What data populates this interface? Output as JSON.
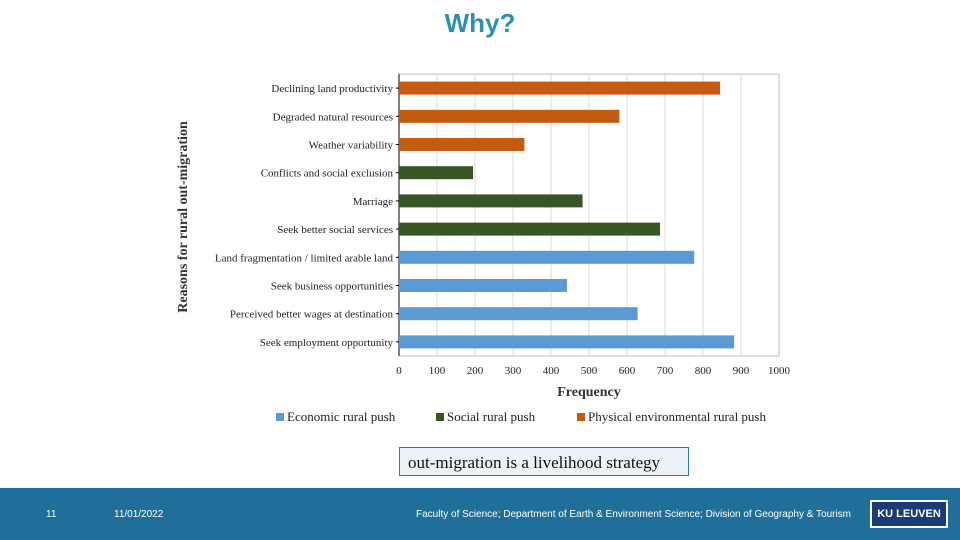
{
  "title": "Why?",
  "chart_data": {
    "type": "bar",
    "orientation": "horizontal",
    "xlabel": "Frequency",
    "ylabel": "Reasons for rural out-migration",
    "xlim": [
      0,
      1000
    ],
    "xticks": [
      0,
      100,
      200,
      300,
      400,
      500,
      600,
      700,
      800,
      900,
      1000
    ],
    "grid": true,
    "categories": [
      "Declining land productivity",
      "Degraded natural resources",
      "Weather variability",
      "Conflicts and social  exclusion",
      "Marriage",
      "Seek better social services",
      "Land fragmentation / limited arable land",
      "Seek business opportunities",
      "Perceived better wages at destination",
      "Seek employment opportunity"
    ],
    "values": [
      845,
      580,
      330,
      195,
      483,
      687,
      777,
      442,
      628,
      882
    ],
    "groups": [
      "physical",
      "physical",
      "physical",
      "social",
      "social",
      "social",
      "economic",
      "economic",
      "economic",
      "economic"
    ],
    "colors": {
      "economic": "#5b9bd5",
      "social": "#375623",
      "physical": "#c55a11"
    },
    "legend": [
      {
        "key": "economic",
        "label": "Economic rural push"
      },
      {
        "key": "social",
        "label": "Social rural push"
      },
      {
        "key": "physical",
        "label": "Physical environmental rural push"
      }
    ]
  },
  "callout": "out-migration is a livelihood strategy",
  "footer": {
    "page_number": "11",
    "date": "11/01/2022",
    "affiliation": "Faculty of Science; Department of Earth & Environment Science; Division of Geography & Tourism",
    "logo": "KU LEUVEN"
  }
}
